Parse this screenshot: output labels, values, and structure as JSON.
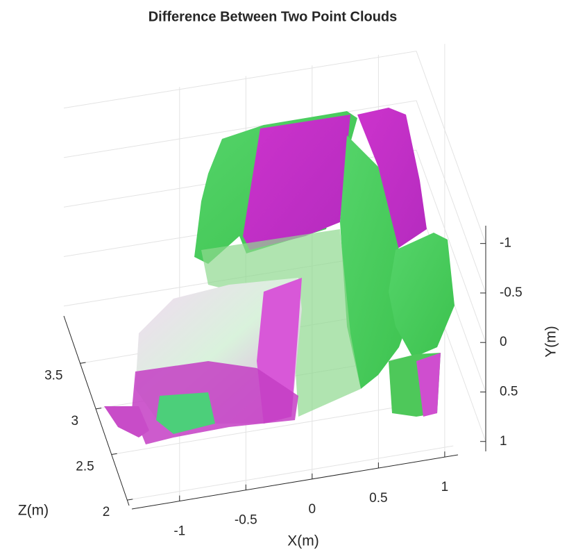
{
  "chart_data": {
    "type": "pointcloud",
    "title": "Difference Between Two Point Clouds",
    "xlabel": "X(m)",
    "ylabel": "Y(m)",
    "zlabel": "Z(m)",
    "xlim": [
      -1.36,
      1.1
    ],
    "xticks": [
      -1,
      -0.5,
      0,
      0.5,
      1
    ],
    "ylim": [
      -1.18,
      1.1
    ],
    "yticks": [
      -1,
      -0.5,
      0,
      0.5,
      1
    ],
    "zlim": [
      1.94,
      4.02
    ],
    "zticks": [
      2,
      2.5,
      3,
      3.5
    ],
    "grid": true
  }
}
